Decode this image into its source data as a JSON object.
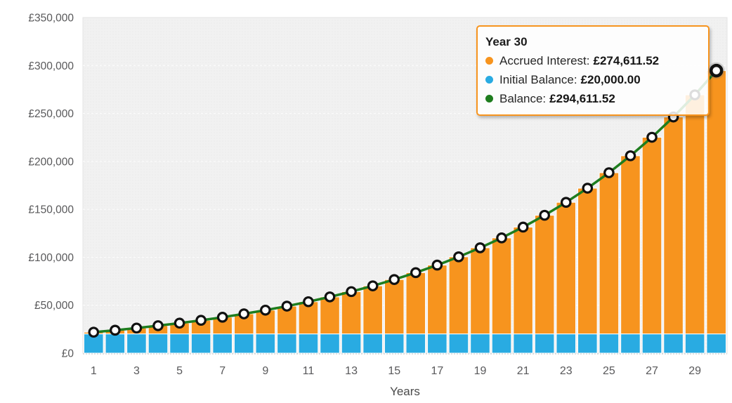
{
  "chart_data": {
    "type": "bar",
    "stacked": true,
    "title": "",
    "xlabel": "Years",
    "ylabel": "",
    "ylim": [
      0,
      350000
    ],
    "grid": true,
    "legend_position": "tooltip-only",
    "currency": "£",
    "x": [
      1,
      2,
      3,
      4,
      5,
      6,
      7,
      8,
      9,
      10,
      11,
      12,
      13,
      14,
      15,
      16,
      17,
      18,
      19,
      20,
      21,
      22,
      23,
      24,
      25,
      26,
      27,
      28,
      29,
      30
    ],
    "x_tick_years": [
      1,
      3,
      5,
      7,
      9,
      11,
      13,
      15,
      17,
      19,
      21,
      23,
      25,
      27,
      29
    ],
    "y_ticks": [
      {
        "value": 0,
        "label": "£0"
      },
      {
        "value": 50000,
        "label": "£50,000"
      },
      {
        "value": 100000,
        "label": "£100,000"
      },
      {
        "value": 150000,
        "label": "£150,000"
      },
      {
        "value": 200000,
        "label": "£200,000"
      },
      {
        "value": 250000,
        "label": "£250,000"
      },
      {
        "value": 300000,
        "label": "£300,000"
      },
      {
        "value": 350000,
        "label": "£350,000"
      }
    ],
    "series": [
      {
        "name": "Initial Balance",
        "type": "bar",
        "color": "#29ABE2",
        "values": [
          20000,
          20000,
          20000,
          20000,
          20000,
          20000,
          20000,
          20000,
          20000,
          20000,
          20000,
          20000,
          20000,
          20000,
          20000,
          20000,
          20000,
          20000,
          20000,
          20000,
          20000,
          20000,
          20000,
          20000,
          20000,
          20000,
          20000,
          20000,
          20000,
          20000
        ]
      },
      {
        "name": "Accrued Interest",
        "type": "bar",
        "color": "#F7941E",
        "values": [
          1876.13,
          3928.32,
          6173.01,
          8628.3,
          11313.94,
          14251.54,
          17464.73,
          20979.32,
          24823.57,
          29028.41,
          33627.67,
          38658.43,
          44161.1,
          50180.03,
          56763.58,
          63964.72,
          71841.43,
          80457.12,
          89881.09,
          100189.07,
          111464.08,
          123796.81,
          137286.56,
          152041.93,
          168181.76,
          185835.68,
          205145.84,
          226267.62,
          249370.82,
          274611.52
        ]
      },
      {
        "name": "Balance",
        "type": "line",
        "color": "#1E7D1E",
        "marker": "circle-white-black-ring",
        "values": [
          21876.13,
          23928.32,
          26173.01,
          28628.3,
          31313.94,
          34251.54,
          37464.73,
          40979.32,
          44823.57,
          49028.41,
          53627.67,
          58658.43,
          64161.1,
          70180.03,
          76763.58,
          83964.72,
          91841.43,
          100457.12,
          109881.09,
          120189.07,
          131464.08,
          143796.81,
          157286.56,
          172041.93,
          188181.76,
          205835.68,
          225145.84,
          246267.62,
          269370.82,
          294611.52
        ]
      }
    ],
    "highlight_x": 30
  },
  "tooltip": {
    "title": "Year 30",
    "border_color": "#F7941E",
    "rows": [
      {
        "label": "Accrued Interest:",
        "value": "£274,611.52",
        "color": "#F7941E"
      },
      {
        "label": "Initial Balance:",
        "value": "£20,000.00",
        "color": "#29ABE2"
      },
      {
        "label": "Balance:",
        "value": "£294,611.52",
        "color": "#1E7D1E"
      }
    ]
  },
  "colors": {
    "accrued_interest": "#F7941E",
    "initial_balance": "#29ABE2",
    "balance_line": "#1E7D1E",
    "marker_ring": "#111111",
    "plot_background": "#F1F1F1",
    "gridline": "#FBFBFB",
    "axis_label": "#58585A",
    "bottom_axis": "#C9C9C9"
  }
}
